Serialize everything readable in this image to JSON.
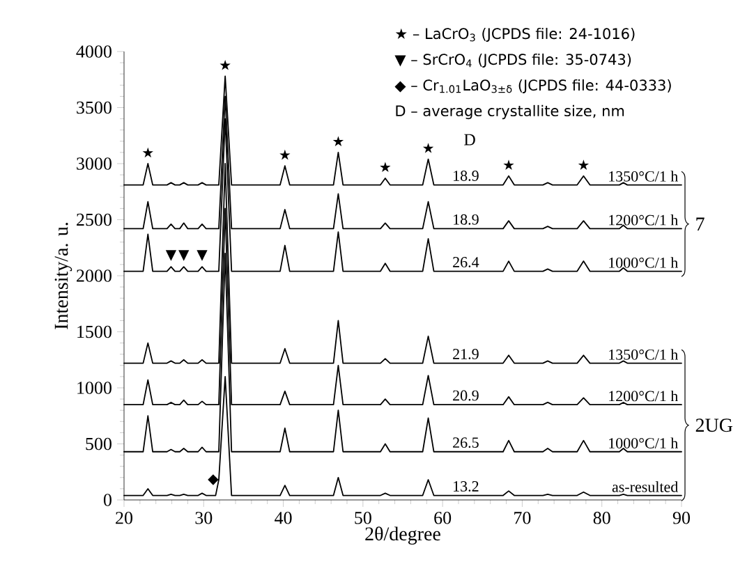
{
  "chart_data": {
    "type": "line",
    "xlabel": "2θ/degree",
    "ylabel": "Intensity/a. u.",
    "xlim": [
      20,
      90
    ],
    "xticks": [
      20,
      30,
      40,
      50,
      60,
      70,
      80,
      90
    ],
    "ylim": [
      0,
      4000
    ],
    "yticks": [
      0,
      500,
      1000,
      1500,
      2000,
      2500,
      3000,
      3500,
      4000
    ],
    "grid": false,
    "x": [
      20,
      22.4,
      23.0,
      23.6,
      25.4,
      25.9,
      26.4,
      27.0,
      27.5,
      28.0,
      29.3,
      29.8,
      30.3,
      31.5,
      31.9,
      32.7,
      33.5,
      39.6,
      40.2,
      40.8,
      46.3,
      46.9,
      47.5,
      52.2,
      52.8,
      53.4,
      57.5,
      58.2,
      58.9,
      67.6,
      68.3,
      69.0,
      72.6,
      73.2,
      73.8,
      76.9,
      77.7,
      78.5,
      82.2,
      82.7,
      83.2,
      90
    ],
    "series": [
      {
        "name": "as-resulted",
        "color": "#000000",
        "values": [
          40,
          40,
          100,
          40,
          40,
          50,
          40,
          40,
          50,
          40,
          40,
          60,
          40,
          40,
          180,
          1100,
          40,
          40,
          130,
          40,
          40,
          200,
          40,
          40,
          60,
          40,
          40,
          180,
          40,
          40,
          80,
          40,
          40,
          50,
          40,
          40,
          70,
          40,
          40,
          50,
          40,
          40
        ]
      },
      {
        "name": "1000°C/1 h",
        "color": "#000000",
        "values": [
          430,
          430,
          750,
          430,
          430,
          450,
          430,
          430,
          460,
          430,
          430,
          470,
          430,
          430,
          430,
          2200,
          430,
          430,
          640,
          430,
          430,
          800,
          430,
          430,
          500,
          430,
          430,
          730,
          430,
          430,
          530,
          430,
          430,
          460,
          430,
          430,
          530,
          430,
          430,
          460,
          430,
          430
        ]
      },
      {
        "name": "1200°C/1 h",
        "color": "#000000",
        "values": [
          850,
          850,
          1070,
          850,
          850,
          870,
          850,
          850,
          890,
          850,
          850,
          880,
          850,
          850,
          850,
          2600,
          850,
          850,
          970,
          850,
          850,
          1200,
          850,
          850,
          900,
          850,
          850,
          1110,
          850,
          850,
          920,
          850,
          850,
          870,
          850,
          850,
          910,
          850,
          850,
          870,
          850,
          850
        ]
      },
      {
        "name": "1350°C/1 h",
        "color": "#000000",
        "values": [
          1220,
          1220,
          1400,
          1220,
          1220,
          1240,
          1220,
          1220,
          1250,
          1220,
          1220,
          1250,
          1220,
          1220,
          1220,
          3000,
          1220,
          1220,
          1350,
          1220,
          1220,
          1600,
          1220,
          1220,
          1260,
          1220,
          1220,
          1460,
          1220,
          1220,
          1290,
          1220,
          1220,
          1240,
          1220,
          1220,
          1290,
          1220,
          1220,
          1240,
          1220,
          1220
        ]
      },
      {
        "name": "1000°C/1 h",
        "color": "#000000",
        "values": [
          2040,
          2040,
          2370,
          2040,
          2040,
          2080,
          2040,
          2040,
          2080,
          2040,
          2040,
          2080,
          2040,
          2040,
          2040,
          3400,
          2040,
          2040,
          2270,
          2040,
          2040,
          2390,
          2040,
          2040,
          2110,
          2040,
          2040,
          2330,
          2040,
          2040,
          2130,
          2040,
          2040,
          2060,
          2040,
          2040,
          2130,
          2040,
          2040,
          2070,
          2040,
          2040
        ]
      },
      {
        "name": "1200°C/1 h",
        "color": "#000000",
        "values": [
          2420,
          2420,
          2660,
          2420,
          2420,
          2460,
          2420,
          2420,
          2470,
          2420,
          2420,
          2460,
          2420,
          2420,
          2420,
          3600,
          2420,
          2420,
          2590,
          2420,
          2420,
          2730,
          2420,
          2420,
          2470,
          2420,
          2420,
          2660,
          2420,
          2420,
          2490,
          2420,
          2420,
          2440,
          2420,
          2420,
          2490,
          2420,
          2420,
          2450,
          2420,
          2420
        ]
      },
      {
        "name": "1350°C/1 h",
        "color": "#000000",
        "values": [
          2810,
          2810,
          3000,
          2810,
          2810,
          2830,
          2810,
          2810,
          2830,
          2810,
          2810,
          2830,
          2810,
          2810,
          2810,
          3780,
          2810,
          2810,
          2980,
          2810,
          2810,
          3100,
          2810,
          2810,
          2870,
          2810,
          2810,
          3040,
          2810,
          2810,
          2890,
          2810,
          2810,
          2830,
          2810,
          2810,
          2890,
          2810,
          2810,
          2830,
          2810,
          2810
        ]
      }
    ],
    "annotations": [
      "★",
      "★",
      "★",
      "★",
      "★",
      "★",
      "★",
      "★",
      "▼",
      "▼",
      "▼",
      "◆",
      "18.9",
      "18.9",
      "26.4",
      "21.9",
      "20.9",
      "26.5",
      "13.2",
      "D",
      "7",
      "2UG",
      "★ – LaCrO$_{3}$ (JCPDS file: 24-1016)",
      "▼ – SrCrO$_{4}$ (JCPDS file: 35-0743)",
      "◆ – Cr$_{1.01}$LaO$_{3±δ}$ (JCPDS file: 44-0333)",
      "D – average crystallite size, nm"
    ]
  }
}
